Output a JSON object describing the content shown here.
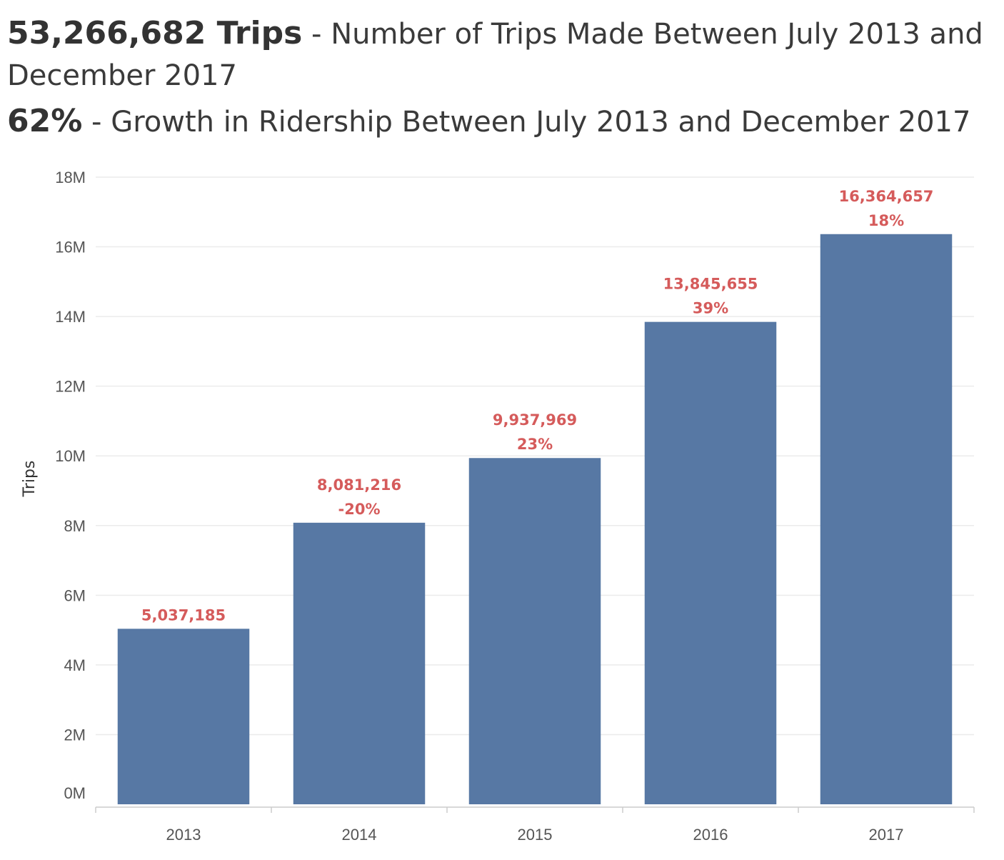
{
  "header": {
    "line1_value": "53,266,682 Trips",
    "line1_text": " - Number of Trips Made Between July 2013 and December 2017",
    "line2_value": "62%",
    "line2_text": " - Growth in Ridership Between July 2013 and December 2017"
  },
  "colors": {
    "bar": "#5778a4",
    "label": "#d55b5b",
    "grid": "#ebebeb",
    "axis": "#cccccc"
  },
  "chart_data": {
    "type": "bar",
    "categories": [
      "2013",
      "2014",
      "2015",
      "2016",
      "2017"
    ],
    "values": [
      5037185,
      8081216,
      9937969,
      13845655,
      16364657
    ],
    "value_labels": [
      "5,037,185",
      "8,081,216",
      "9,937,969",
      "13,845,655",
      "16,364,657"
    ],
    "growth_labels": [
      "",
      "-20%",
      "23%",
      "39%",
      "18%"
    ],
    "ylabel": "Trips",
    "ylim": [
      0,
      18000000
    ],
    "yticks": [
      0,
      2000000,
      4000000,
      6000000,
      8000000,
      10000000,
      12000000,
      14000000,
      16000000,
      18000000
    ],
    "ytick_labels": [
      "0M",
      "2M",
      "4M",
      "6M",
      "8M",
      "10M",
      "12M",
      "14M",
      "16M",
      "18M"
    ],
    "grid": true
  }
}
